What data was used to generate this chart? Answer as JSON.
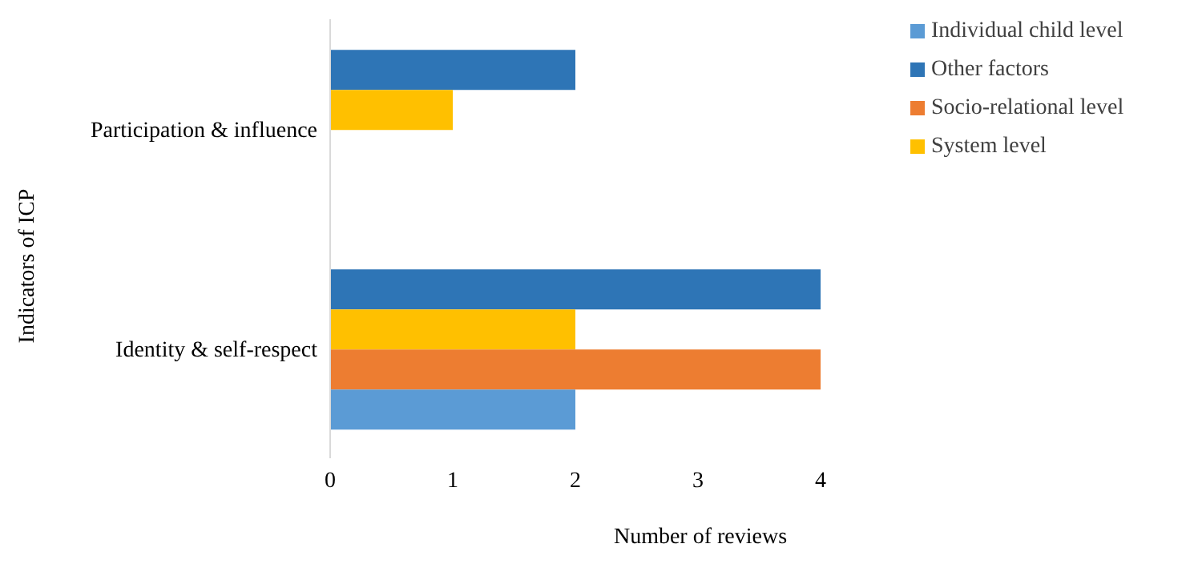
{
  "chart_data": {
    "type": "bar",
    "orientation": "horizontal",
    "xlabel": "Number of reviews",
    "ylabel": "Indicators of ICP",
    "categories": [
      "Participation & influence",
      "Identity & self-respect"
    ],
    "series": [
      {
        "name": "Other factors",
        "color": "#2e75b6",
        "values": [
          2,
          4
        ]
      },
      {
        "name": "System level",
        "color": "#ffc000",
        "values": [
          1,
          2
        ]
      },
      {
        "name": "Socio-relational level",
        "color": "#ed7d31",
        "values": [
          null,
          4
        ]
      },
      {
        "name": "Individual child level",
        "color": "#5b9bd5",
        "values": [
          null,
          2
        ]
      }
    ],
    "xlim": [
      0,
      4
    ],
    "xticks": [
      0,
      1,
      2,
      3,
      4
    ],
    "grid": false,
    "legend": "top right"
  }
}
